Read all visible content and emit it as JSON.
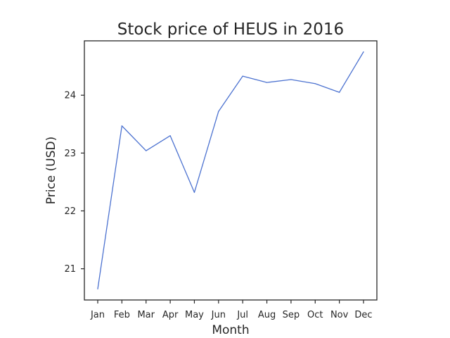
{
  "chart_data": {
    "type": "line",
    "title": "Stock price of HEUS in 2016",
    "xlabel": "Month",
    "ylabel": "Price (USD)",
    "categories": [
      "Jan",
      "Feb",
      "Mar",
      "Apr",
      "May",
      "Jun",
      "Jul",
      "Aug",
      "Sep",
      "Oct",
      "Nov",
      "Dec"
    ],
    "series": [
      {
        "values": [
          20.65,
          23.47,
          23.04,
          23.3,
          22.32,
          23.72,
          24.33,
          24.22,
          24.27,
          24.2,
          24.05,
          24.75
        ]
      }
    ],
    "ylim": [
      20.46,
      24.94
    ],
    "yticks": [
      21,
      22,
      23,
      24
    ],
    "grid": false,
    "colors": {
      "line": "#4c72d0",
      "axes": "#262626"
    }
  }
}
